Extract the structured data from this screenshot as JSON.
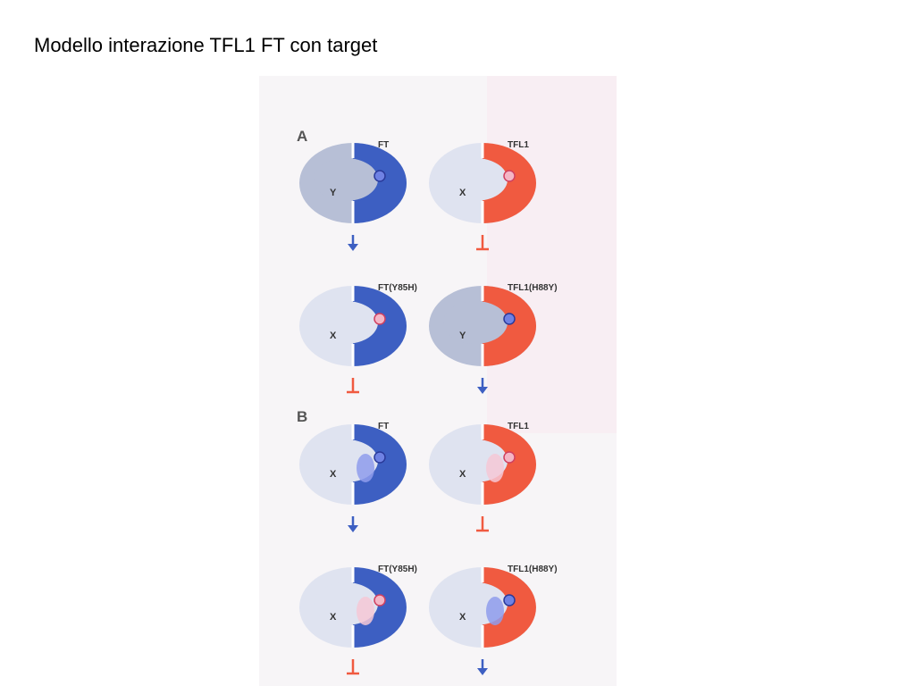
{
  "title": "Modello interazione TFL1 FT con target",
  "panels": [
    {
      "label": "A",
      "units": [
        {
          "protein": "FT",
          "partner": "Y"
        },
        {
          "protein": "TFL1",
          "partner": "X"
        },
        {
          "protein": "FT(Y85H)",
          "partner": "X"
        },
        {
          "protein": "TFL1(H88Y)",
          "partner": "Y"
        }
      ]
    },
    {
      "label": "B",
      "units": [
        {
          "protein": "FT",
          "partner": "X"
        },
        {
          "protein": "TFL1",
          "partner": "X"
        },
        {
          "protein": "FT(Y85H)",
          "partner": "X"
        },
        {
          "protein": "TFL1(H88Y)",
          "partner": "X"
        }
      ]
    }
  ]
}
